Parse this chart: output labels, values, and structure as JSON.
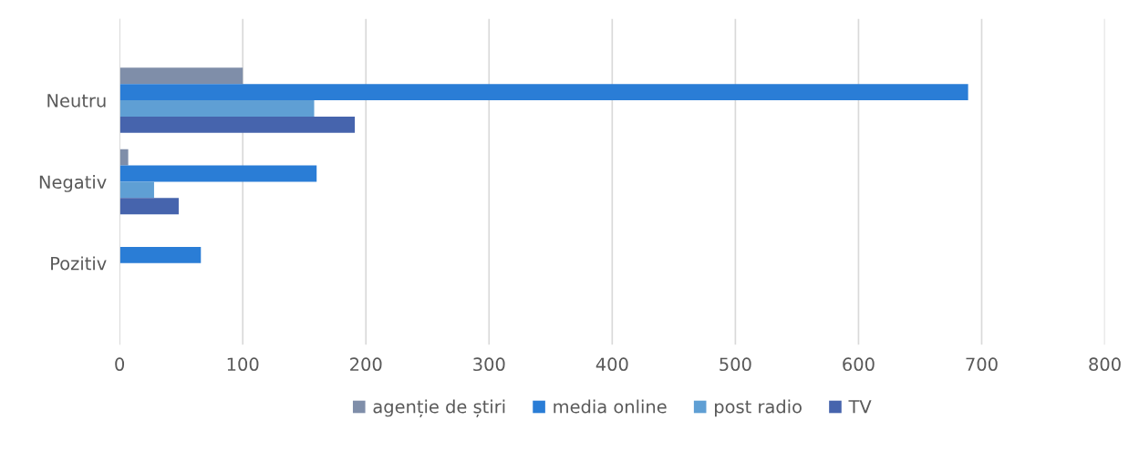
{
  "chart_data": {
    "type": "bar",
    "orientation": "horizontal",
    "categories": [
      "Neutru",
      "Negativ",
      "Pozitiv"
    ],
    "series": [
      {
        "name": "agenție de știri",
        "color": "#7f8ea9",
        "values": [
          100,
          7,
          0
        ]
      },
      {
        "name": "media online",
        "color": "#2a7dd6",
        "values": [
          689,
          160,
          66
        ]
      },
      {
        "name": "post radio",
        "color": "#5f9fd4",
        "values": [
          158,
          28,
          0
        ]
      },
      {
        "name": "TV",
        "color": "#4664ad",
        "values": [
          191,
          48,
          0
        ]
      }
    ],
    "xlim": [
      0,
      800
    ],
    "xticks": [
      0,
      100,
      200,
      300,
      400,
      500,
      600,
      700,
      800
    ],
    "grid": "x",
    "legend": "bottom"
  }
}
